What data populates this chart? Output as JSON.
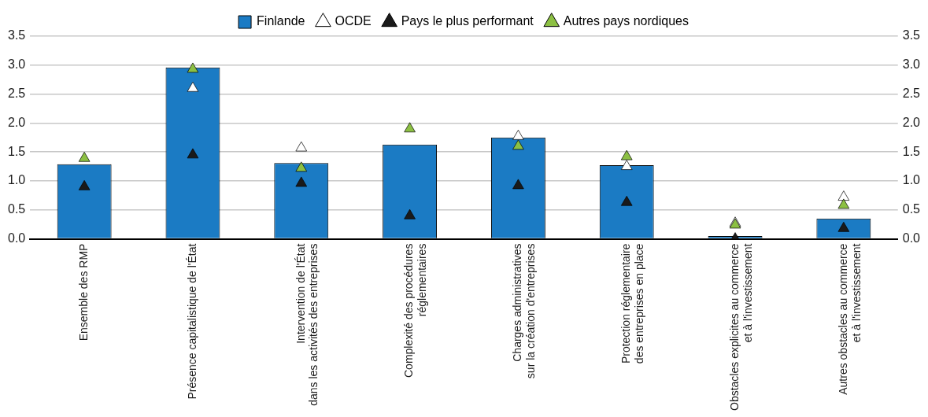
{
  "chart_data": {
    "type": "bar",
    "categories": [
      "Ensemble des RMP",
      "Présence capitalistique de l'État",
      "Intervention de l'État\ndans les activités des entreprises",
      "Complexité des procédures\nréglementaires",
      "Charges administratives\nsur la création d'entreprises",
      "Protection réglementaire\ndes entreprises en place",
      "Obstacles explicites au commerce\net à l'investissement",
      "Autres obstacles au commerce\net à l'investissement"
    ],
    "series": [
      {
        "name": "Finlande",
        "color": "#1b7bc4",
        "values": [
          1.29,
          2.96,
          1.31,
          1.63,
          1.75,
          1.27,
          0.05,
          0.35
        ]
      },
      {
        "name": "OCDE",
        "type": "scatter",
        "color": "#ffffff",
        "values": [
          null,
          2.6,
          1.57,
          null,
          1.77,
          1.25,
          0.27,
          0.72
        ]
      },
      {
        "name": "Pays le plus performant",
        "type": "scatter",
        "color": "#1a1a1a",
        "values": [
          0.9,
          1.45,
          0.96,
          0.4,
          0.92,
          0.63,
          0.0,
          0.18
        ]
      },
      {
        "name": "Autres pays nordiques",
        "type": "scatter",
        "color": "#8cc043",
        "values": [
          1.39,
          2.93,
          1.22,
          1.9,
          1.6,
          1.42,
          0.24,
          0.58
        ]
      }
    ],
    "ylim": [
      0,
      3.5
    ],
    "yticks": [
      {
        "value": 0,
        "label": "0.0"
      },
      {
        "value": 0.5,
        "label": "0.5"
      },
      {
        "value": 1,
        "label": "1.0"
      },
      {
        "value": 1.5,
        "label": "1.5"
      },
      {
        "value": 2,
        "label": "2.0"
      },
      {
        "value": 2.5,
        "label": "2.5"
      },
      {
        "value": 3,
        "label": "3.0"
      },
      {
        "value": 3.5,
        "label": "3.5"
      }
    ],
    "y2lim": [
      0,
      3.5
    ],
    "y2ticks": [
      {
        "value": 0,
        "label": "0.0"
      },
      {
        "value": 0.5,
        "label": "0.5"
      },
      {
        "value": 1,
        "label": "1.0"
      },
      {
        "value": 1.5,
        "label": "1.5"
      },
      {
        "value": 2,
        "label": "2.0"
      },
      {
        "value": 2.5,
        "label": "2.5"
      },
      {
        "value": 3,
        "label": "3.0"
      },
      {
        "value": 3.5,
        "label": "3.5"
      }
    ],
    "grid": "y",
    "legend": "top",
    "marker": "triangle"
  }
}
